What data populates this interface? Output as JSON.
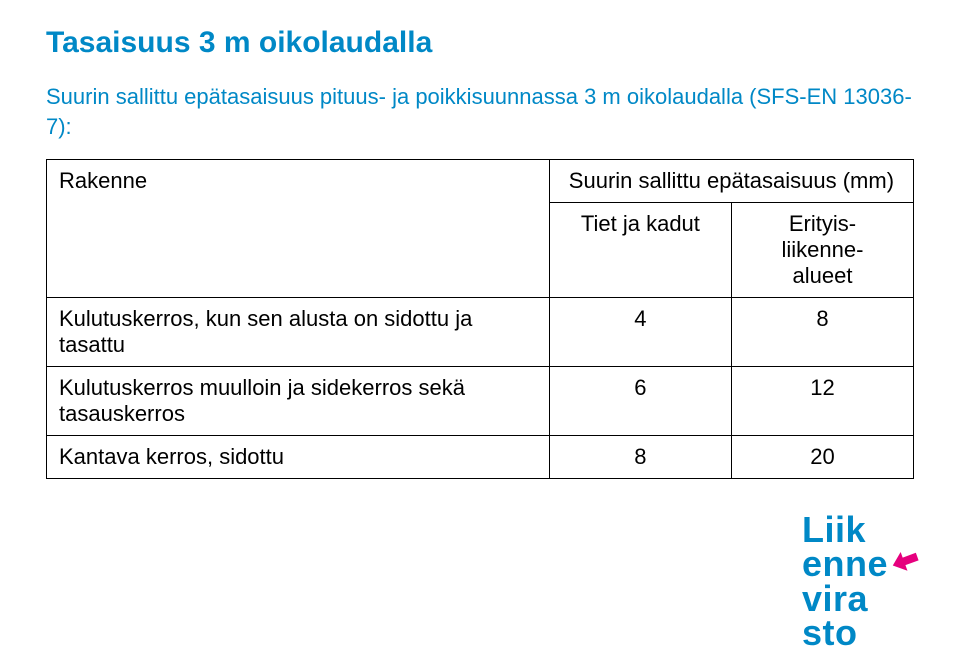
{
  "colors": {
    "title_color": "#0088c6",
    "intro_color": "#0088c6",
    "table_text_color": "#000000",
    "logo_color1": "#0088c6",
    "logo_color2": "#e6007e",
    "background": "#ffffff"
  },
  "title": "Tasaisuus 3 m oikolaudalla",
  "intro": "Suurin sallittu epätasaisuus pituus- ja poikkisuunnassa 3 m oikolaudalla  (SFS-EN 13036-7):",
  "table": {
    "header_left": "Rakenne",
    "header_top": "Suurin sallittu epätasaisuus (mm)",
    "sub_left": "Tiet ja kadut",
    "sub_right": "Erityis-\nliikenne-\nalueet",
    "rows": [
      {
        "label": "Kulutuskerros, kun sen alusta on sidottu ja tasattu",
        "a": "4",
        "b": "8"
      },
      {
        "label": "Kulutuskerros muulloin ja sidekerros sekä tasauskerros",
        "a": "6",
        "b": "12"
      },
      {
        "label": "Kantava kerros, sidottu",
        "a": "8",
        "b": "20"
      }
    ]
  },
  "logo": {
    "line1": "Liik",
    "line2": "enne",
    "line3": "vira",
    "line4": "sto"
  }
}
